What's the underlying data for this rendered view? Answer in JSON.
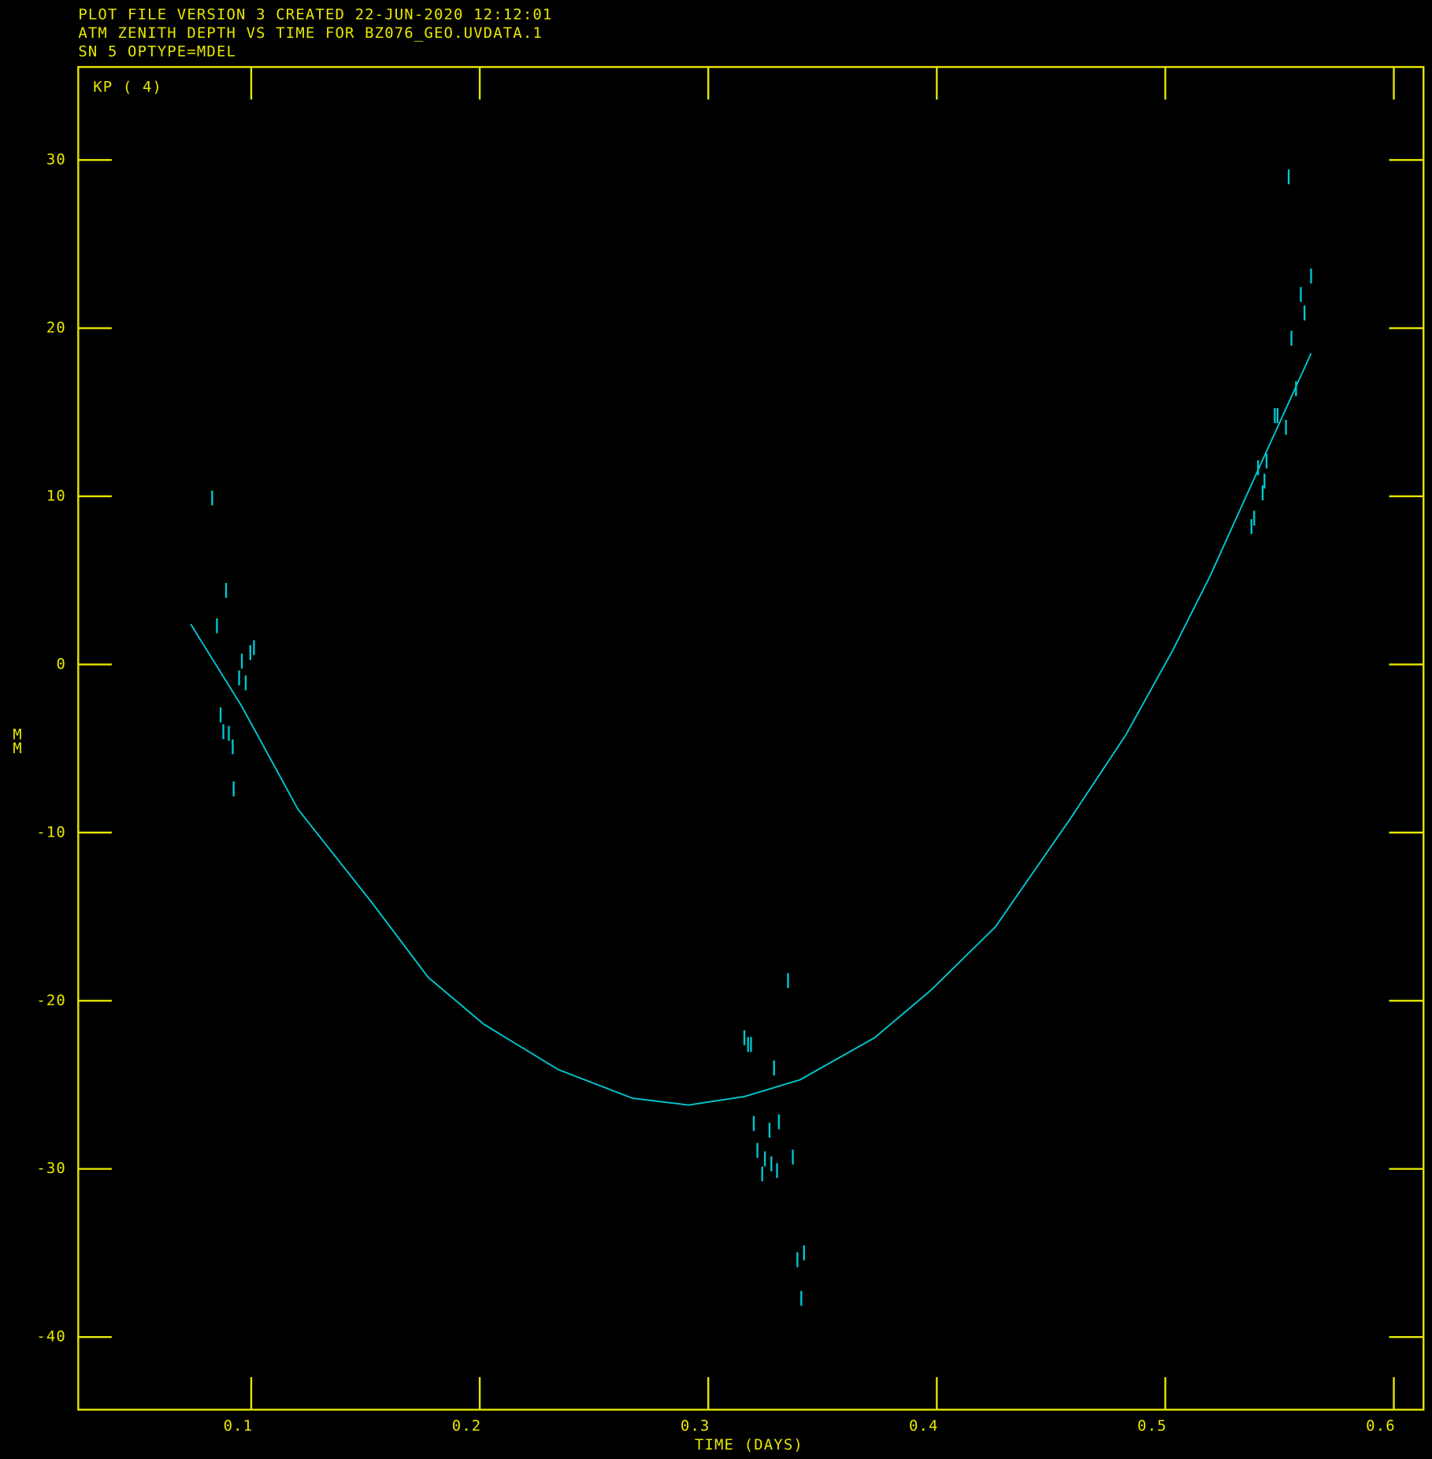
{
  "chart_data": {
    "type": "scatter",
    "header": [
      "PLOT FILE VERSION 3  CREATED 22-JUN-2020 12:12:01",
      "ATM ZENITH DEPTH VS TIME FOR BZ076_GEO.UVDATA.1",
      "SN 5 OPTYPE=MDEL"
    ],
    "annotation": "KP ( 4)",
    "x_label": "TIME (DAYS)",
    "y_label": "MM",
    "xlim": [
      0.0243,
      0.613
    ],
    "ylim": [
      -44.32,
      35.53
    ],
    "xticks": [
      0.1,
      0.2,
      0.3,
      0.4,
      0.5,
      0.6
    ],
    "yticks": [
      30,
      20,
      10,
      0,
      -10,
      -20,
      -30,
      -40
    ],
    "axis_color": "#e8e800",
    "series": [
      {
        "color": "#00c8d0",
        "style": "tick",
        "x": [
          0.0829,
          0.089,
          0.085,
          0.0866,
          0.0878,
          0.0902,
          0.0919,
          0.0923,
          0.0947,
          0.0959,
          0.0976,
          0.0996,
          0.1012,
          0.3158,
          0.3174,
          0.3187,
          0.3288,
          0.3349,
          0.3199,
          0.3268,
          0.3309,
          0.3215,
          0.3248,
          0.3236,
          0.3276,
          0.3301,
          0.337,
          0.339,
          0.3419,
          0.3407,
          0.554,
          0.5638,
          0.5593,
          0.5609,
          0.5552,
          0.5572,
          0.5491,
          0.5479,
          0.5528,
          0.5443,
          0.5406,
          0.5434,
          0.5426,
          0.5389,
          0.5377
        ],
        "values": [
          9.9,
          4.4,
          2.3,
          -3.0,
          -4.0,
          -4.1,
          -4.9,
          -7.4,
          -0.8,
          0.2,
          -1.1,
          0.7,
          1.0,
          -22.2,
          -22.6,
          -22.6,
          -24.0,
          -18.8,
          -27.3,
          -27.7,
          -27.2,
          -28.9,
          -29.4,
          -30.3,
          -29.7,
          -30.1,
          -29.3,
          -35.4,
          -35.0,
          -37.7,
          29.0,
          23.1,
          22.0,
          20.9,
          19.4,
          16.4,
          14.8,
          14.8,
          14.1,
          12.1,
          11.7,
          10.9,
          10.2,
          8.7,
          8.2
        ]
      },
      {
        "color": "#00c8d0",
        "style": "line",
        "x": [
          0.0735,
          0.0959,
          0.1204,
          0.153,
          0.1774,
          0.2018,
          0.2344,
          0.2669,
          0.2914,
          0.3158,
          0.3402,
          0.3728,
          0.3972,
          0.4257,
          0.4583,
          0.4827,
          0.5031,
          0.5194,
          0.5397,
          0.5638
        ],
        "values": [
          2.4,
          -2.5,
          -8.6,
          -14.2,
          -18.6,
          -21.4,
          -24.1,
          -25.8,
          -26.2,
          -25.7,
          -24.7,
          -22.2,
          -19.4,
          -15.6,
          -9.2,
          -4.2,
          0.8,
          5.2,
          11.3,
          18.5
        ]
      }
    ]
  }
}
